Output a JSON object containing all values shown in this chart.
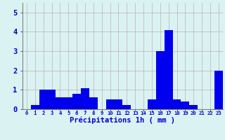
{
  "hours": [
    0,
    1,
    2,
    3,
    4,
    5,
    6,
    7,
    8,
    9,
    10,
    11,
    12,
    13,
    14,
    15,
    16,
    17,
    18,
    19,
    20,
    21,
    22,
    23
  ],
  "values": [
    0,
    0.2,
    1.0,
    1.0,
    0.6,
    0.6,
    0.8,
    1.1,
    0.6,
    0,
    0.5,
    0.5,
    0.2,
    0,
    0,
    0.5,
    3.0,
    4.1,
    0.5,
    0.4,
    0.2,
    0,
    0,
    2.0
  ],
  "bar_color": "#0000ee",
  "background_color": "#daf2f2",
  "grid_color": "#c0b0b0",
  "xlabel": "Précipitations 1h ( mm )",
  "xlabel_color": "#0000cc",
  "tick_color": "#0000cc",
  "ylim": [
    0,
    5.5
  ],
  "yticks": [
    0,
    1,
    2,
    3,
    4,
    5
  ],
  "spine_color": "#808080"
}
